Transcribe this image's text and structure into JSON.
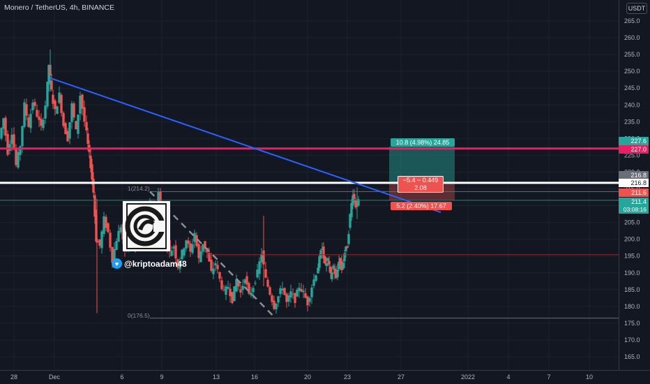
{
  "header": {
    "symbol_title": "Monero / TetherUS, 4h, BINANCE",
    "currency": "USDT",
    "settings_glyph": "○"
  },
  "price_axis": {
    "ticks": [
      "265.0",
      "260.0",
      "255.0",
      "250.0",
      "245.0",
      "240.0",
      "235.0",
      "230.0",
      "225.0",
      "220.0",
      "215.0",
      "210.0",
      "205.0",
      "200.0",
      "195.0",
      "190.0",
      "185.0",
      "180.0",
      "175.0",
      "170.0",
      "165.0"
    ],
    "tick_values": [
      265,
      260,
      255,
      250,
      245,
      240,
      235,
      230,
      225,
      220,
      215,
      210,
      205,
      200,
      195,
      190,
      185,
      180,
      175,
      170,
      165
    ]
  },
  "time_axis": {
    "labels": [
      "28",
      "Dec",
      "6",
      "9",
      "13",
      "16",
      "20",
      "23",
      "27",
      "2022",
      "4",
      "7",
      "10"
    ]
  },
  "price_tags": {
    "target": "227.6",
    "resistance": "227.0",
    "white_line": "216.8",
    "white_line_top": "216.8",
    "entry": "211.6",
    "current": "211.4",
    "countdown": "03:08:16"
  },
  "position_tool": {
    "profit_label": "10.8 (4.98%) 24.85",
    "center_line1": "−5.4 ~ 0.449",
    "center_line2": "2.08",
    "stop_label": "5.2 (2.40%) 17.67"
  },
  "fibonacci": {
    "level_top": "1(214.2)",
    "level_bottom": "0(176.5)"
  },
  "watermark": {
    "handle": "@kriptoadam48",
    "twitter_icon": "bird-icon",
    "logo_name": "kriptoadam-logo"
  },
  "colors": {
    "background": "#131722",
    "bull": "#26a69a",
    "bear": "#ef5350",
    "trendline": "#2962ff",
    "resistance": "#e91e63",
    "support": "#ffffff",
    "target_box": "#26a69a",
    "stop_box": "#ef5350"
  },
  "chart_data": {
    "type": "candlestick",
    "x": [
      "28",
      "Dec",
      "6",
      "9",
      "13",
      "16",
      "20",
      "23",
      "27",
      "2022",
      "4",
      "7",
      "10"
    ],
    "ylim": [
      162,
      269
    ],
    "annotations": {
      "resistance_level": 227.0,
      "support_level": 216.8,
      "minor_support": 195.4,
      "trendline_start": 248.0,
      "trendline_end": 208.0,
      "fib_high": 214.2,
      "fib_low": 176.5,
      "long_entry": 216.8,
      "long_target": 227.6,
      "long_stop": 211.6
    }
  }
}
